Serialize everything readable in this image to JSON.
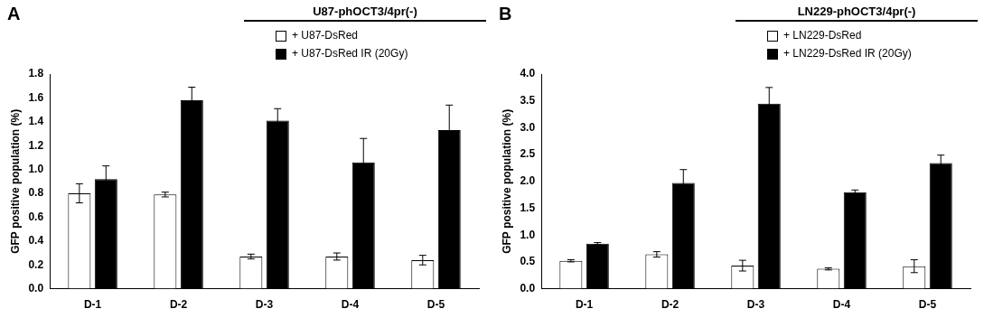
{
  "chart_data": [
    {
      "type": "bar",
      "title": "A",
      "subtitle": "U87-phOCT3/4pr(-)",
      "y_label": "GFP positive population (%)",
      "categories": [
        "D-1",
        "D-2",
        "D-3",
        "D-4",
        "D-5"
      ],
      "series": [
        {
          "name": "+ U87-DsRed",
          "color": "#ffffff",
          "values": [
            0.8,
            0.79,
            0.27,
            0.27,
            0.24
          ],
          "errors": [
            0.08,
            0.02,
            0.02,
            0.03,
            0.04
          ]
        },
        {
          "name": "+ U87-DsRed IR (20Gy)",
          "color": "#000000",
          "values": [
            0.92,
            1.58,
            1.41,
            1.06,
            1.33
          ],
          "errors": [
            0.11,
            0.11,
            0.1,
            0.2,
            0.21
          ]
        }
      ],
      "ylim": [
        0,
        1.8
      ],
      "yticks": [
        {
          "value": 0,
          "label": "0.0"
        },
        0.2,
        0.4,
        0.6,
        0.8,
        {
          "value": 1,
          "label": "1.0"
        },
        1.2,
        1.4,
        1.6,
        1.8
      ],
      "grid": false
    },
    {
      "type": "bar",
      "title": "B",
      "subtitle": "LN229-phOCT3/4pr(-)",
      "y_label": "GFP positive population (%)",
      "categories": [
        "D-1",
        "D-2",
        "D-3",
        "D-4",
        "D-5"
      ],
      "series": [
        {
          "name": "+ LN229-DsRed",
          "color": "#ffffff",
          "values": [
            0.52,
            0.64,
            0.43,
            0.37,
            0.42
          ],
          "errors": [
            0.02,
            0.05,
            0.1,
            0.02,
            0.12
          ]
        },
        {
          "name": "+ LN229-DsRed IR (20Gy)",
          "color": "#000000",
          "values": [
            0.84,
            1.97,
            3.45,
            1.8,
            2.34
          ],
          "errors": [
            0.02,
            0.25,
            0.3,
            0.04,
            0.15
          ]
        }
      ],
      "ylim": [
        0,
        4
      ],
      "yticks": [
        {
          "value": 0,
          "label": "0.0"
        },
        0.5,
        {
          "value": 1,
          "label": "1.0"
        },
        1.5,
        {
          "value": 2,
          "label": "2.0"
        },
        2.5,
        {
          "value": 3,
          "label": "3.0"
        },
        3.5,
        {
          "value": 4,
          "label": "4.0"
        }
      ],
      "grid": false
    }
  ]
}
